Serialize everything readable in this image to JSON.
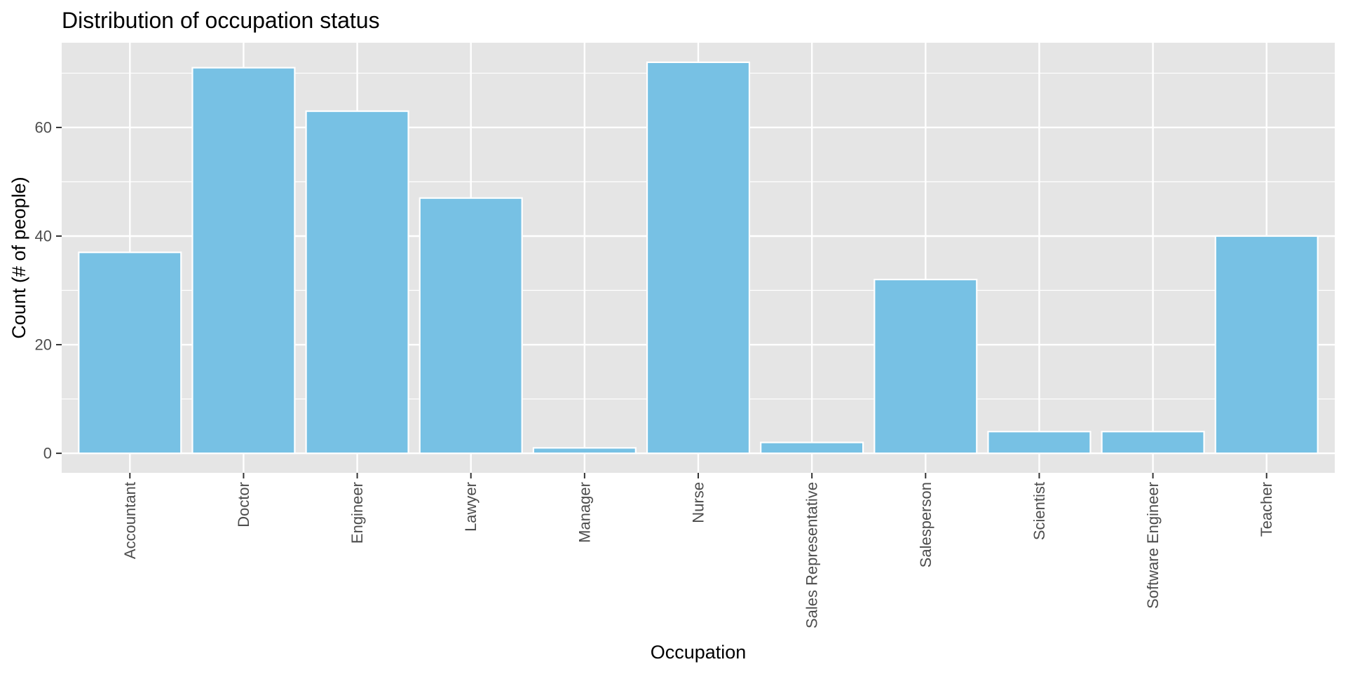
{
  "chart_data": {
    "type": "bar",
    "title": "Distribution of occupation status",
    "xlabel": "Occupation",
    "ylabel": "Count (# of people)",
    "categories": [
      "Accountant",
      "Doctor",
      "Engineer",
      "Lawyer",
      "Manager",
      "Nurse",
      "Sales Representative",
      "Salesperson",
      "Scientist",
      "Software Engineer",
      "Teacher"
    ],
    "values": [
      37,
      71,
      63,
      47,
      1,
      72,
      2,
      32,
      4,
      4,
      40
    ],
    "ylim": [
      -3.6,
      75.6
    ],
    "yticks": [
      0,
      20,
      40,
      60
    ],
    "grid": true,
    "legend": "none",
    "colors": {
      "bar_fill": "#77C1E4",
      "bar_outline": "#FFFFFF",
      "panel_background": "#E5E5E5",
      "grid_line": "#FFFFFF",
      "tick_text": "#4D4D4D",
      "title_text": "#000000"
    }
  }
}
